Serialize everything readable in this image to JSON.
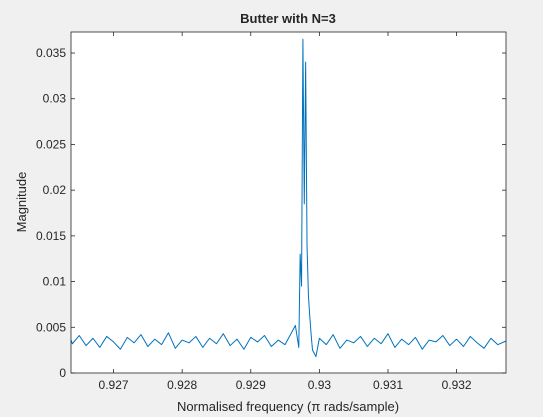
{
  "chart_data": {
    "type": "line",
    "title": "Butter with N=3",
    "xlabel": "Normalised frequency (π rads/sample)",
    "ylabel": "Magnitude",
    "xlim": [
      0.92638,
      0.93272
    ],
    "ylim": [
      0,
      0.0373
    ],
    "xticks": [
      0.927,
      0.928,
      0.929,
      0.93,
      0.931,
      0.932
    ],
    "xtick_labels": [
      "0.927",
      "0.928",
      "0.929",
      "0.93",
      "0.931",
      "0.932"
    ],
    "yticks": [
      0,
      0.005,
      0.01,
      0.015,
      0.02,
      0.025,
      0.03,
      0.035
    ],
    "ytick_labels": [
      "0",
      "0.005",
      "0.01",
      "0.015",
      "0.02",
      "0.025",
      "0.03",
      "0.035"
    ],
    "grid": false,
    "legend": "none",
    "series": [
      {
        "color": "#0072bd",
        "x": [
          0.92638,
          0.9264,
          0.9265,
          0.9266,
          0.9267,
          0.9268,
          0.9269,
          0.927,
          0.9271,
          0.9272,
          0.9273,
          0.9274,
          0.9275,
          0.9276,
          0.9277,
          0.9278,
          0.9279,
          0.928,
          0.9281,
          0.9282,
          0.9283,
          0.9284,
          0.9285,
          0.9286,
          0.9287,
          0.9288,
          0.9289,
          0.929,
          0.9291,
          0.9292,
          0.9293,
          0.9294,
          0.9295,
          0.9296,
          0.92965,
          0.9297,
          0.92972,
          0.92974,
          0.92976,
          0.92978,
          0.9298,
          0.92982,
          0.92984,
          0.92986,
          0.92988,
          0.9299,
          0.92995,
          0.93,
          0.9301,
          0.9302,
          0.9303,
          0.9304,
          0.9305,
          0.9306,
          0.9307,
          0.9308,
          0.9309,
          0.931,
          0.9311,
          0.9312,
          0.9313,
          0.9314,
          0.9315,
          0.9316,
          0.9317,
          0.9318,
          0.9319,
          0.932,
          0.9321,
          0.9322,
          0.9323,
          0.9324,
          0.9325,
          0.9326,
          0.93272
        ],
        "y": [
          0.0036,
          0.0032,
          0.0041,
          0.003,
          0.0038,
          0.0028,
          0.004,
          0.0034,
          0.0026,
          0.0039,
          0.0033,
          0.0042,
          0.0029,
          0.0037,
          0.0031,
          0.0044,
          0.0027,
          0.0036,
          0.0033,
          0.004,
          0.0028,
          0.0038,
          0.0032,
          0.0043,
          0.003,
          0.0037,
          0.0026,
          0.0039,
          0.0034,
          0.0041,
          0.0029,
          0.0036,
          0.0031,
          0.0045,
          0.0052,
          0.0028,
          0.013,
          0.0095,
          0.0365,
          0.0185,
          0.034,
          0.014,
          0.0085,
          0.0062,
          0.0042,
          0.0025,
          0.0018,
          0.0038,
          0.0031,
          0.0042,
          0.0027,
          0.0036,
          0.0033,
          0.004,
          0.0029,
          0.0038,
          0.0032,
          0.0043,
          0.0028,
          0.0037,
          0.0031,
          0.0039,
          0.0026,
          0.0036,
          0.0034,
          0.0041,
          0.003,
          0.0037,
          0.0029,
          0.004,
          0.0033,
          0.0027,
          0.0038,
          0.0031,
          0.0035
        ]
      }
    ]
  }
}
